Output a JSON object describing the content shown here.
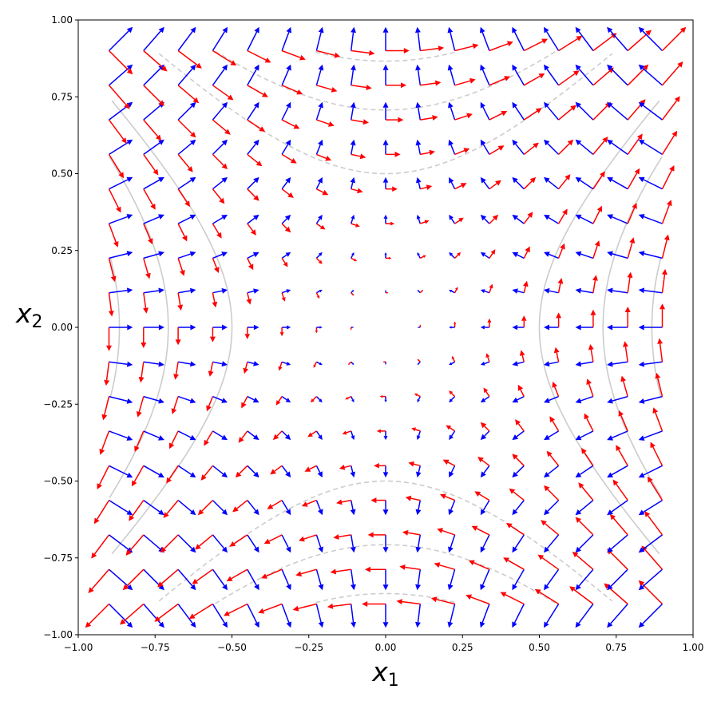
{
  "chart_data": {
    "type": "quiver",
    "xlabel": "x",
    "xlabel_sub": "1",
    "ylabel": "x",
    "ylabel_sub": "2",
    "xlim": [
      -1.0,
      1.0
    ],
    "ylim": [
      -1.0,
      1.0
    ],
    "xticks": [
      "−1.00",
      "−0.75",
      "−0.50",
      "−0.25",
      "0.00",
      "0.25",
      "0.50",
      "0.75",
      "1.00"
    ],
    "yticks": [
      "1.00",
      "0.75",
      "0.50",
      "0.25",
      "0.00",
      "−0.25",
      "−0.50",
      "−0.75",
      "−1.00"
    ],
    "xtick_values": [
      -1.0,
      -0.75,
      -0.5,
      -0.25,
      0.0,
      0.25,
      0.5,
      0.75,
      1.0
    ],
    "ytick_values": [
      1.0,
      0.75,
      0.5,
      0.25,
      0.0,
      -0.25,
      -0.5,
      -0.75,
      -1.0
    ],
    "grid": false,
    "grid_range": [
      -0.9,
      0.9
    ],
    "grid_points_per_axis": 17,
    "series": [
      {
        "field": "eigenvector_1",
        "color": "#0000ff"
      },
      {
        "field": "eigenvector_2",
        "color": "#ff0000"
      }
    ],
    "contours": [
      {
        "kind": "hyperbola_vertical",
        "a": 0.5,
        "style": "dashed",
        "color": "#cccccc"
      },
      {
        "kind": "hyperbola_vertical",
        "a": 0.7071,
        "style": "dashed",
        "color": "#cccccc"
      },
      {
        "kind": "hyperbola_vertical",
        "a": 0.866,
        "style": "dashed",
        "color": "#cccccc"
      },
      {
        "kind": "hyperbola_horizontal",
        "a": 0.5,
        "style": "solid",
        "color": "#cccccc"
      },
      {
        "kind": "hyperbola_horizontal",
        "a": 0.7071,
        "style": "solid",
        "color": "#cccccc"
      },
      {
        "kind": "hyperbola_horizontal",
        "a": 0.866,
        "style": "solid",
        "color": "#cccccc"
      }
    ]
  }
}
